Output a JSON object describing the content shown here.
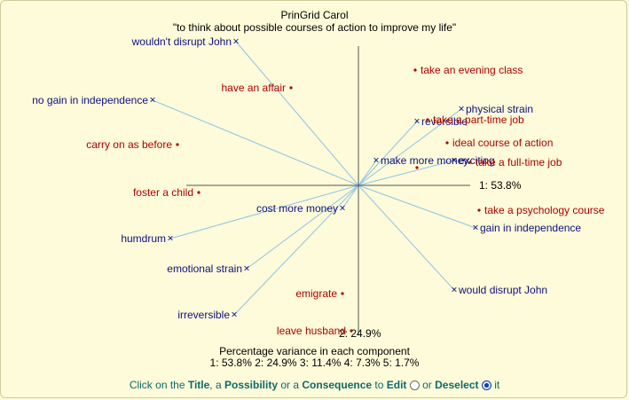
{
  "title": "PrinGrid Carol",
  "subtitle": "\"to think about possible courses of action to improve my life\"",
  "chart_data": {
    "type": "scatter",
    "axes": {
      "x_label": "1: 53.8%",
      "y_label": "2: 24.9%"
    },
    "constructs": [
      {
        "label": "wouldn't disrupt John",
        "x": -0.69,
        "y": 0.81
      },
      {
        "label": "no gain in independence",
        "x": -1.16,
        "y": 0.48
      },
      {
        "label": "cost more money",
        "x": -0.09,
        "y": -0.13
      },
      {
        "label": "humdrum",
        "x": -1.06,
        "y": -0.3
      },
      {
        "label": "emotional strain",
        "x": -0.63,
        "y": -0.47
      },
      {
        "label": "irreversible",
        "x": -0.7,
        "y": -0.73
      },
      {
        "label": "reversible",
        "x": 0.33,
        "y": 0.36
      },
      {
        "label": "physical strain",
        "x": 0.58,
        "y": 0.43
      },
      {
        "label": "make more money",
        "x": 0.1,
        "y": 0.14
      },
      {
        "label": "exciting",
        "x": 0.54,
        "y": 0.14
      },
      {
        "label": "gain in independence",
        "x": 0.66,
        "y": -0.24
      },
      {
        "label": "would disrupt John",
        "x": 0.54,
        "y": -0.59
      }
    ],
    "elements": [
      {
        "label": "have an affair",
        "x": -0.38,
        "y": 0.55
      },
      {
        "label": "carry on as before",
        "x": -1.02,
        "y": 0.23
      },
      {
        "label": "foster a child",
        "x": -0.9,
        "y": -0.04
      },
      {
        "label": "emigrate",
        "x": -0.09,
        "y": -0.61
      },
      {
        "label": "leave husband",
        "x": -0.04,
        "y": -0.82
      },
      {
        "label": "take an evening class",
        "x": 0.32,
        "y": 0.65
      },
      {
        "label": "take a part-time job",
        "x": 0.39,
        "y": 0.37
      },
      {
        "label": "ideal course of action",
        "x": 0.5,
        "y": 0.24
      },
      {
        "label": "take a full-time job",
        "x": 0.63,
        "y": 0.13
      },
      {
        "label": "take a psychology course",
        "x": 0.68,
        "y": -0.14
      }
    ],
    "ideal_point": {
      "x": 0.33,
      "y": 0.1
    },
    "xlim": [
      -1.75,
      1.75
    ],
    "ylim": [
      -1.15,
      1.15
    ]
  },
  "variance": {
    "title": "Percentage variance in each component",
    "values": "1: 53.8%  2: 24.9%  3: 11.4%  4: 7.3%  5: 1.7%"
  },
  "instructions": {
    "p1": "Click on the ",
    "title_link": "Title",
    "p2": ", a ",
    "possibility_link": "Possibility",
    "p3": " or a ",
    "consequence_link": "Consequence",
    "p4": " to ",
    "edit_label": "Edit",
    "p5": " or ",
    "deselect_label": "Deselect",
    "p6": " it"
  },
  "colors": {
    "construct": "#101080",
    "element": "#b00000",
    "vector": "#8fc3e6",
    "axis": "#555555",
    "background": "#fdfbd9"
  }
}
